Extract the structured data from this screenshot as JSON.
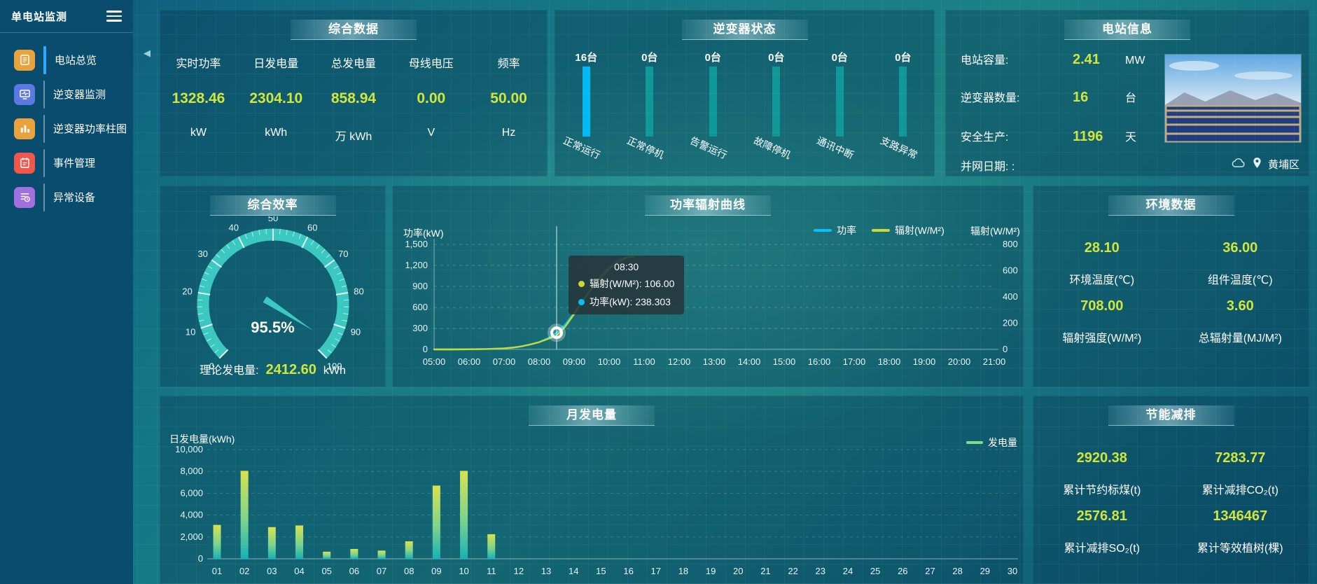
{
  "sidebar": {
    "title": "单电站监测",
    "items": [
      {
        "label": "电站总览",
        "icon": "station-overview-icon",
        "color": "#e8a33d",
        "active": true
      },
      {
        "label": "逆变器监测",
        "icon": "inverter-monitor-icon",
        "color": "#5b79e3",
        "active": false
      },
      {
        "label": "逆变器功率柱图",
        "icon": "inverter-power-bars-icon",
        "color": "#e8a33d",
        "active": false
      },
      {
        "label": "事件管理",
        "icon": "event-management-icon",
        "color": "#f0584e",
        "active": false
      },
      {
        "label": "异常设备",
        "icon": "abnormal-device-icon",
        "color": "#a06fe0",
        "active": false
      }
    ]
  },
  "overview_panel": {
    "title": "综合数据",
    "metrics": [
      {
        "label": "实时功率",
        "value": "1328.46",
        "unit": "kW"
      },
      {
        "label": "日发电量",
        "value": "2304.10",
        "unit": "kWh"
      },
      {
        "label": "总发电量",
        "value": "858.94",
        "unit": "万 kWh"
      },
      {
        "label": "母线电压",
        "value": "0.00",
        "unit": "V"
      },
      {
        "label": "频率",
        "value": "50.00",
        "unit": "Hz"
      }
    ]
  },
  "inverter_status_panel": {
    "title": "逆变器状态",
    "items": [
      {
        "count": "16台",
        "label": "正常运行",
        "highlight": true
      },
      {
        "count": "0台",
        "label": "正常停机",
        "highlight": false
      },
      {
        "count": "0台",
        "label": "告警运行",
        "highlight": false
      },
      {
        "count": "0台",
        "label": "故障停机",
        "highlight": false
      },
      {
        "count": "0台",
        "label": "通讯中断",
        "highlight": false
      },
      {
        "count": "0台",
        "label": "支路异常",
        "highlight": false
      }
    ]
  },
  "station_info_panel": {
    "title": "电站信息",
    "rows": [
      {
        "label": "电站容量:",
        "value": "2.41",
        "unit": "MW"
      },
      {
        "label": "逆变器数量:",
        "value": "16",
        "unit": "台"
      },
      {
        "label": "安全生产:",
        "value": "1196",
        "unit": "天"
      },
      {
        "label": "并网日期: :",
        "value": "",
        "unit": ""
      }
    ],
    "location": "黄埔区"
  },
  "efficiency_panel": {
    "title": "综合效率",
    "theory_label": "理论发电量:",
    "theory_value": "2412.60",
    "theory_unit": "kWh"
  },
  "environment_panel": {
    "title": "环境数据",
    "metrics": [
      {
        "value": "28.10",
        "label": "环境温度(℃)"
      },
      {
        "value": "36.00",
        "label": "组件温度(℃)"
      },
      {
        "value": "708.00",
        "label": "辐射强度(W/M²)"
      },
      {
        "value": "3.60",
        "label": "总辐射量(MJ/M²)"
      }
    ]
  },
  "saving_panel": {
    "title": "节能减排",
    "metrics": [
      {
        "value": "2920.38",
        "label": "累计节约标煤(t)"
      },
      {
        "value": "7283.77",
        "label": "累计减排CO₂(t)"
      },
      {
        "value": "2576.81",
        "label": "累计减排SO₂(t)"
      },
      {
        "value": "1346467",
        "label": "累计等效植树(棵)"
      }
    ]
  },
  "chart_data": [
    {
      "type": "line",
      "title": "功率辐射曲线",
      "ylabel_left": "功率(kW)",
      "ylabel_right": "辐射(W/M²)",
      "legend": [
        "功率",
        "辐射(W/M²)"
      ],
      "x_range": [
        5,
        21
      ],
      "x_axis_labels": [
        "05:00",
        "06:00",
        "07:00",
        "08:00",
        "09:00",
        "10:00",
        "11:00",
        "12:00",
        "13:00",
        "14:00",
        "15:00",
        "16:00",
        "17:00",
        "18:00",
        "19:00",
        "20:00",
        "21:00"
      ],
      "y_left_range": [
        0,
        1500
      ],
      "y_left_ticks": [
        "0",
        "300",
        "600",
        "900",
        "1,200",
        "1,500"
      ],
      "y_right_range": [
        0,
        800
      ],
      "y_right_ticks": [
        "0",
        "200",
        "400",
        "600",
        "800"
      ],
      "x_hours": [
        5,
        5.5,
        6,
        6.5,
        7,
        7.25,
        7.5,
        7.75,
        8,
        8.25,
        8.5,
        8.75,
        9,
        9.25,
        9.5,
        9.75,
        10,
        10.25,
        10.5,
        10.7
      ],
      "series": [
        {
          "name": "功率",
          "axis": "left",
          "color": "#00c0ff",
          "values": [
            0,
            0,
            2,
            6,
            14,
            24,
            42,
            70,
            105,
            160,
            238.3,
            360,
            520,
            700,
            880,
            1040,
            1180,
            1275,
            1322,
            1328
          ]
        },
        {
          "name": "辐射(W/M²)",
          "axis": "right",
          "color": "#c9d832",
          "values": [
            0,
            0,
            1,
            3,
            8,
            14,
            24,
            38,
            55,
            80,
            106,
            175,
            270,
            370,
            465,
            545,
            615,
            663,
            700,
            708
          ]
        }
      ],
      "hover": {
        "x_hour": 8.5,
        "time": "08:30",
        "items": [
          {
            "text": "辐射(W/M²): 106.00",
            "color": "#c9d832"
          },
          {
            "text": "功率(kW): 238.303",
            "color": "#00c0ff"
          }
        ]
      }
    },
    {
      "type": "bar",
      "title": "月发电量",
      "ylabel": "日发电量(kWh)",
      "legend": "发电量",
      "legend_color": "#86d98b",
      "categories": [
        "01",
        "02",
        "03",
        "04",
        "05",
        "06",
        "07",
        "08",
        "09",
        "10",
        "11",
        "12",
        "13",
        "14",
        "15",
        "16",
        "17",
        "18",
        "19",
        "20",
        "21",
        "22",
        "23",
        "24",
        "25",
        "26",
        "27",
        "28",
        "29",
        "30"
      ],
      "values": [
        3100,
        8050,
        2900,
        3050,
        650,
        900,
        750,
        1600,
        6700,
        8050,
        2250,
        0,
        0,
        0,
        0,
        0,
        0,
        0,
        0,
        0,
        0,
        0,
        0,
        0,
        0,
        0,
        0,
        0,
        0,
        0
      ],
      "y_range": [
        0,
        10000
      ],
      "y_ticks": [
        "0",
        "2,000",
        "4,000",
        "6,000",
        "8,000",
        "10,000"
      ],
      "bar_gradient": [
        "#d8e24e",
        "#7fd48b",
        "#16b1b6"
      ]
    },
    {
      "type": "gauge",
      "title": "综合效率",
      "value": 95.5,
      "label": "95.5%",
      "min": 0,
      "max": 100,
      "tick_labels": [
        "0",
        "10",
        "20",
        "30",
        "40",
        "50",
        "60",
        "70",
        "80",
        "90",
        "100"
      ],
      "color": "#3bc8c0"
    },
    {
      "type": "bar",
      "title": "逆变器状态",
      "categories": [
        "正常运行",
        "正常停机",
        "告警运行",
        "故障停机",
        "通讯中断",
        "支路异常"
      ],
      "values": [
        16,
        0,
        0,
        0,
        0,
        0
      ],
      "unit": "台",
      "highlight_color": "#00b9f5",
      "bar_color": "#0f9897"
    }
  ]
}
